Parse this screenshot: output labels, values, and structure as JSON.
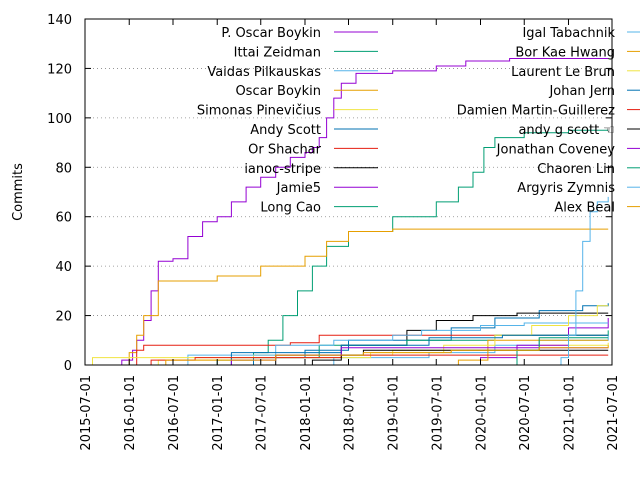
{
  "chart_data": {
    "type": "line",
    "step": true,
    "ylabel": "Commits",
    "ylim": [
      0,
      140
    ],
    "yticks": [
      0,
      20,
      40,
      60,
      80,
      100,
      120,
      140
    ],
    "xlim": [
      "2015-07-01",
      "2021-07-01"
    ],
    "xticks": [
      "2015-07-01",
      "2016-01-01",
      "2016-07-01",
      "2017-01-01",
      "2017-07-01",
      "2018-01-01",
      "2018-07-01",
      "2019-01-01",
      "2019-07-01",
      "2020-01-01",
      "2020-07-01",
      "2021-01-01",
      "2021-07-01"
    ],
    "grid": "y dotted",
    "legend": "top, two columns",
    "series": [
      {
        "name": "P. Oscar Boykin",
        "color": "#9400d3",
        "points": [
          [
            "2015-10-01",
            0
          ],
          [
            "2015-12-01",
            2
          ],
          [
            "2016-01-15",
            6
          ],
          [
            "2016-02-01",
            10
          ],
          [
            "2016-03-01",
            18
          ],
          [
            "2016-04-01",
            30
          ],
          [
            "2016-05-01",
            42
          ],
          [
            "2016-07-01",
            43
          ],
          [
            "2016-09-01",
            52
          ],
          [
            "2016-11-01",
            58
          ],
          [
            "2017-01-01",
            60
          ],
          [
            "2017-03-01",
            66
          ],
          [
            "2017-05-01",
            72
          ],
          [
            "2017-07-01",
            76
          ],
          [
            "2017-09-01",
            80
          ],
          [
            "2017-11-01",
            84
          ],
          [
            "2018-01-01",
            86
          ],
          [
            "2018-02-01",
            88
          ],
          [
            "2018-03-01",
            92
          ],
          [
            "2018-04-01",
            100
          ],
          [
            "2018-05-01",
            108
          ],
          [
            "2018-06-01",
            114
          ],
          [
            "2018-08-01",
            118
          ],
          [
            "2019-01-01",
            119
          ],
          [
            "2019-07-01",
            121
          ],
          [
            "2019-11-01",
            123
          ],
          [
            "2020-05-01",
            124
          ],
          [
            "2021-06-15",
            124
          ]
        ]
      },
      {
        "name": "Ittai Zeidman",
        "color": "#009e73",
        "points": [
          [
            "2016-06-01",
            0
          ],
          [
            "2017-01-01",
            2
          ],
          [
            "2017-06-01",
            5
          ],
          [
            "2017-08-01",
            10
          ],
          [
            "2017-10-01",
            20
          ],
          [
            "2017-12-01",
            30
          ],
          [
            "2018-02-01",
            40
          ],
          [
            "2018-04-01",
            48
          ],
          [
            "2018-07-01",
            54
          ],
          [
            "2019-01-01",
            60
          ],
          [
            "2019-07-01",
            66
          ],
          [
            "2019-10-01",
            72
          ],
          [
            "2019-12-01",
            78
          ],
          [
            "2020-01-15",
            88
          ],
          [
            "2020-03-01",
            92
          ],
          [
            "2020-07-01",
            94
          ],
          [
            "2021-01-01",
            95
          ],
          [
            "2021-06-15",
            95
          ]
        ]
      },
      {
        "name": "Vaidas Pilkauskas",
        "color": "#56b4e9",
        "points": [
          [
            "2018-03-01",
            0
          ],
          [
            "2018-05-01",
            3
          ],
          [
            "2019-06-01",
            5
          ],
          [
            "2020-03-01",
            8
          ],
          [
            "2020-09-01",
            10
          ],
          [
            "2021-06-15",
            12
          ]
        ]
      },
      {
        "name": "Oscar Boykin",
        "color": "#e69f00",
        "points": [
          [
            "2015-12-01",
            0
          ],
          [
            "2016-01-01",
            5
          ],
          [
            "2016-02-01",
            12
          ],
          [
            "2016-03-01",
            20
          ],
          [
            "2016-05-01",
            34
          ],
          [
            "2016-07-01",
            34
          ],
          [
            "2017-01-01",
            36
          ],
          [
            "2017-07-01",
            40
          ],
          [
            "2018-01-01",
            44
          ],
          [
            "2018-04-01",
            50
          ],
          [
            "2018-07-01",
            54
          ],
          [
            "2019-01-01",
            55
          ],
          [
            "2021-06-15",
            55
          ]
        ]
      },
      {
        "name": "Simonas Pinevičius",
        "color": "#f0e442",
        "points": [
          [
            "2016-01-01",
            0
          ],
          [
            "2016-05-01",
            2
          ],
          [
            "2017-06-01",
            4
          ],
          [
            "2019-01-01",
            6
          ],
          [
            "2020-09-01",
            8
          ],
          [
            "2021-06-15",
            9
          ]
        ]
      },
      {
        "name": "Andy Scott",
        "color": "#0072b2",
        "points": [
          [
            "2017-01-01",
            0
          ],
          [
            "2017-06-01",
            3
          ],
          [
            "2018-01-01",
            6
          ],
          [
            "2018-07-01",
            10
          ],
          [
            "2019-09-01",
            15
          ],
          [
            "2020-03-01",
            19
          ],
          [
            "2020-09-01",
            22
          ],
          [
            "2021-03-01",
            24
          ],
          [
            "2021-06-15",
            25
          ]
        ]
      },
      {
        "name": "Or Shachar",
        "color": "#e51e10",
        "points": [
          [
            "2016-01-01",
            0
          ],
          [
            "2016-02-01",
            6
          ],
          [
            "2016-03-01",
            8
          ],
          [
            "2017-11-01",
            9
          ],
          [
            "2018-03-01",
            12
          ],
          [
            "2021-06-15",
            12
          ]
        ]
      },
      {
        "name": "ianoc-stripe",
        "color": "#000000",
        "points": [
          [
            "2017-05-01",
            0
          ],
          [
            "2017-09-01",
            4
          ],
          [
            "2018-06-01",
            8
          ],
          [
            "2019-03-01",
            14
          ],
          [
            "2019-07-01",
            18
          ],
          [
            "2019-12-01",
            20
          ],
          [
            "2020-06-01",
            21
          ],
          [
            "2021-06-15",
            21
          ]
        ]
      },
      {
        "name": "Jamie5",
        "color": "#9400d3",
        "points": [
          [
            "2019-06-01",
            0
          ],
          [
            "2020-01-01",
            3
          ],
          [
            "2020-06-01",
            8
          ],
          [
            "2021-01-01",
            15
          ],
          [
            "2021-06-15",
            19
          ]
        ]
      },
      {
        "name": "Long Cao",
        "color": "#009e73",
        "points": [
          [
            "2016-03-01",
            0
          ],
          [
            "2017-03-01",
            3
          ],
          [
            "2018-03-01",
            8
          ],
          [
            "2019-03-01",
            10
          ],
          [
            "2020-03-01",
            12
          ],
          [
            "2021-06-15",
            14
          ]
        ]
      },
      {
        "name": "Igal Tabachnik",
        "color": "#56b4e9",
        "points": [
          [
            "2015-08-01",
            0
          ],
          [
            "2016-09-01",
            4
          ],
          [
            "2017-09-01",
            8
          ],
          [
            "2018-05-01",
            10
          ],
          [
            "2019-01-01",
            12
          ],
          [
            "2019-05-01",
            14
          ],
          [
            "2020-01-01",
            16
          ],
          [
            "2020-07-01",
            17
          ],
          [
            "2021-06-15",
            17
          ]
        ]
      },
      {
        "name": "Bor Kae Hwang",
        "color": "#e69f00",
        "points": [
          [
            "2019-06-01",
            0
          ],
          [
            "2019-10-01",
            2
          ],
          [
            "2020-02-01",
            10
          ],
          [
            "2021-06-15",
            10
          ]
        ]
      },
      {
        "name": "Laurent Le Brun",
        "color": "#f0e442",
        "points": [
          [
            "2015-07-15",
            0
          ],
          [
            "2015-08-01",
            3
          ],
          [
            "2016-06-01",
            3
          ],
          [
            "2018-10-01",
            5
          ],
          [
            "2019-08-01",
            8
          ],
          [
            "2020-03-01",
            12
          ],
          [
            "2020-08-01",
            16
          ],
          [
            "2021-01-01",
            20
          ],
          [
            "2021-05-01",
            24
          ],
          [
            "2021-06-15",
            24
          ]
        ]
      },
      {
        "name": "Johan Jern",
        "color": "#0072b2",
        "points": [
          [
            "2016-06-01",
            0
          ],
          [
            "2017-03-01",
            5
          ],
          [
            "2018-06-01",
            8
          ],
          [
            "2019-06-01",
            11
          ],
          [
            "2020-04-01",
            12
          ],
          [
            "2021-06-15",
            12
          ]
        ]
      },
      {
        "name": "Damien Martin-Guillerez",
        "color": "#e51e10",
        "points": [
          [
            "2015-09-01",
            0
          ],
          [
            "2016-04-01",
            2
          ],
          [
            "2016-10-01",
            3
          ],
          [
            "2018-06-01",
            4
          ],
          [
            "2021-06-15",
            4
          ]
        ]
      },
      {
        "name": "andy g scott ☜",
        "color": "#000000",
        "points": [
          [
            "2017-10-01",
            0
          ],
          [
            "2018-02-01",
            2
          ],
          [
            "2018-06-01",
            4
          ],
          [
            "2018-09-01",
            6
          ],
          [
            "2021-06-15",
            6
          ]
        ]
      },
      {
        "name": "Jonathan Coveney",
        "color": "#9400d3",
        "points": [
          [
            "2016-10-01",
            0
          ],
          [
            "2017-03-01",
            2
          ],
          [
            "2017-09-01",
            4
          ],
          [
            "2018-06-01",
            7
          ],
          [
            "2021-06-15",
            7
          ]
        ]
      },
      {
        "name": "Chaoren Lin",
        "color": "#009e73",
        "points": [
          [
            "2020-04-01",
            0
          ],
          [
            "2020-06-01",
            6
          ],
          [
            "2020-09-01",
            11
          ],
          [
            "2021-06-15",
            11
          ]
        ]
      },
      {
        "name": "Argyris Zymnis",
        "color": "#56b4e9",
        "points": [
          [
            "2020-10-01",
            0
          ],
          [
            "2020-12-01",
            3
          ],
          [
            "2021-01-01",
            12
          ],
          [
            "2021-02-01",
            30
          ],
          [
            "2021-03-01",
            50
          ],
          [
            "2021-04-01",
            62
          ],
          [
            "2021-05-01",
            66
          ],
          [
            "2021-06-15",
            68
          ]
        ]
      },
      {
        "name": "Alex Beal",
        "color": "#e69f00",
        "points": [
          [
            "2015-08-01",
            0
          ],
          [
            "2016-06-01",
            2
          ],
          [
            "2017-09-01",
            4
          ],
          [
            "2018-09-01",
            5
          ],
          [
            "2019-09-01",
            6
          ],
          [
            "2020-09-01",
            7
          ],
          [
            "2021-06-15",
            8
          ]
        ]
      }
    ]
  }
}
